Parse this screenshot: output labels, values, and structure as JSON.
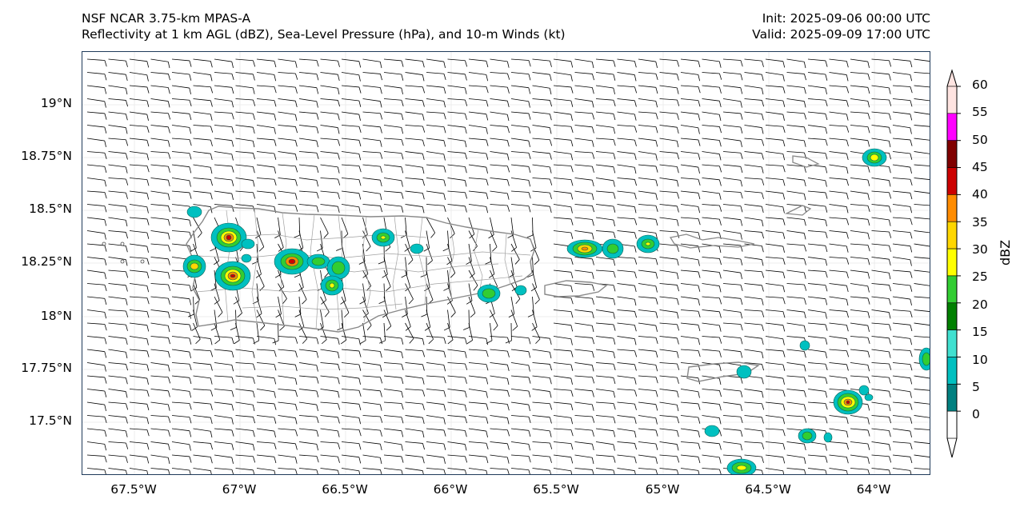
{
  "header": {
    "model_name": "NSF NCAR 3.75-km MPAS-A",
    "fields": "Reflectivity at 1 km AGL (dBZ), Sea-Level Pressure (hPa), and 10-m Winds (kt)",
    "init": "Init: 2025-09-06 00:00 UTC",
    "valid": "Valid: 2025-09-09 17:00 UTC"
  },
  "map": {
    "lat_labels": [
      "19°N",
      "18.75°N",
      "18.5°N",
      "18.25°N",
      "18°N",
      "17.75°N",
      "17.5°N"
    ],
    "lon_labels": [
      "67.5°W",
      "67°W",
      "66.5°W",
      "66°W",
      "65.5°W",
      "65°W",
      "64.5°W",
      "64°W"
    ],
    "gridline_color": "#e6e6e6",
    "coast_color": "#888888",
    "municipio_color": "#9a9a9a"
  },
  "colorbar": {
    "label": "dBZ",
    "ticks": [
      "60",
      "55",
      "50",
      "45",
      "40",
      "35",
      "30",
      "25",
      "20",
      "15",
      "10",
      "5",
      "0"
    ],
    "colors": [
      "#ffffff",
      "#008080",
      "#00c0c0",
      "#40e0d0",
      "#008000",
      "#32cd32",
      "#ffff00",
      "#ffd700",
      "#ff8c00",
      "#cc0000",
      "#800000",
      "#ff00ff",
      "#ffe4e1"
    ],
    "levels": [
      0,
      5,
      10,
      15,
      20,
      25,
      30,
      35,
      40,
      45,
      50,
      55,
      60
    ]
  }
}
